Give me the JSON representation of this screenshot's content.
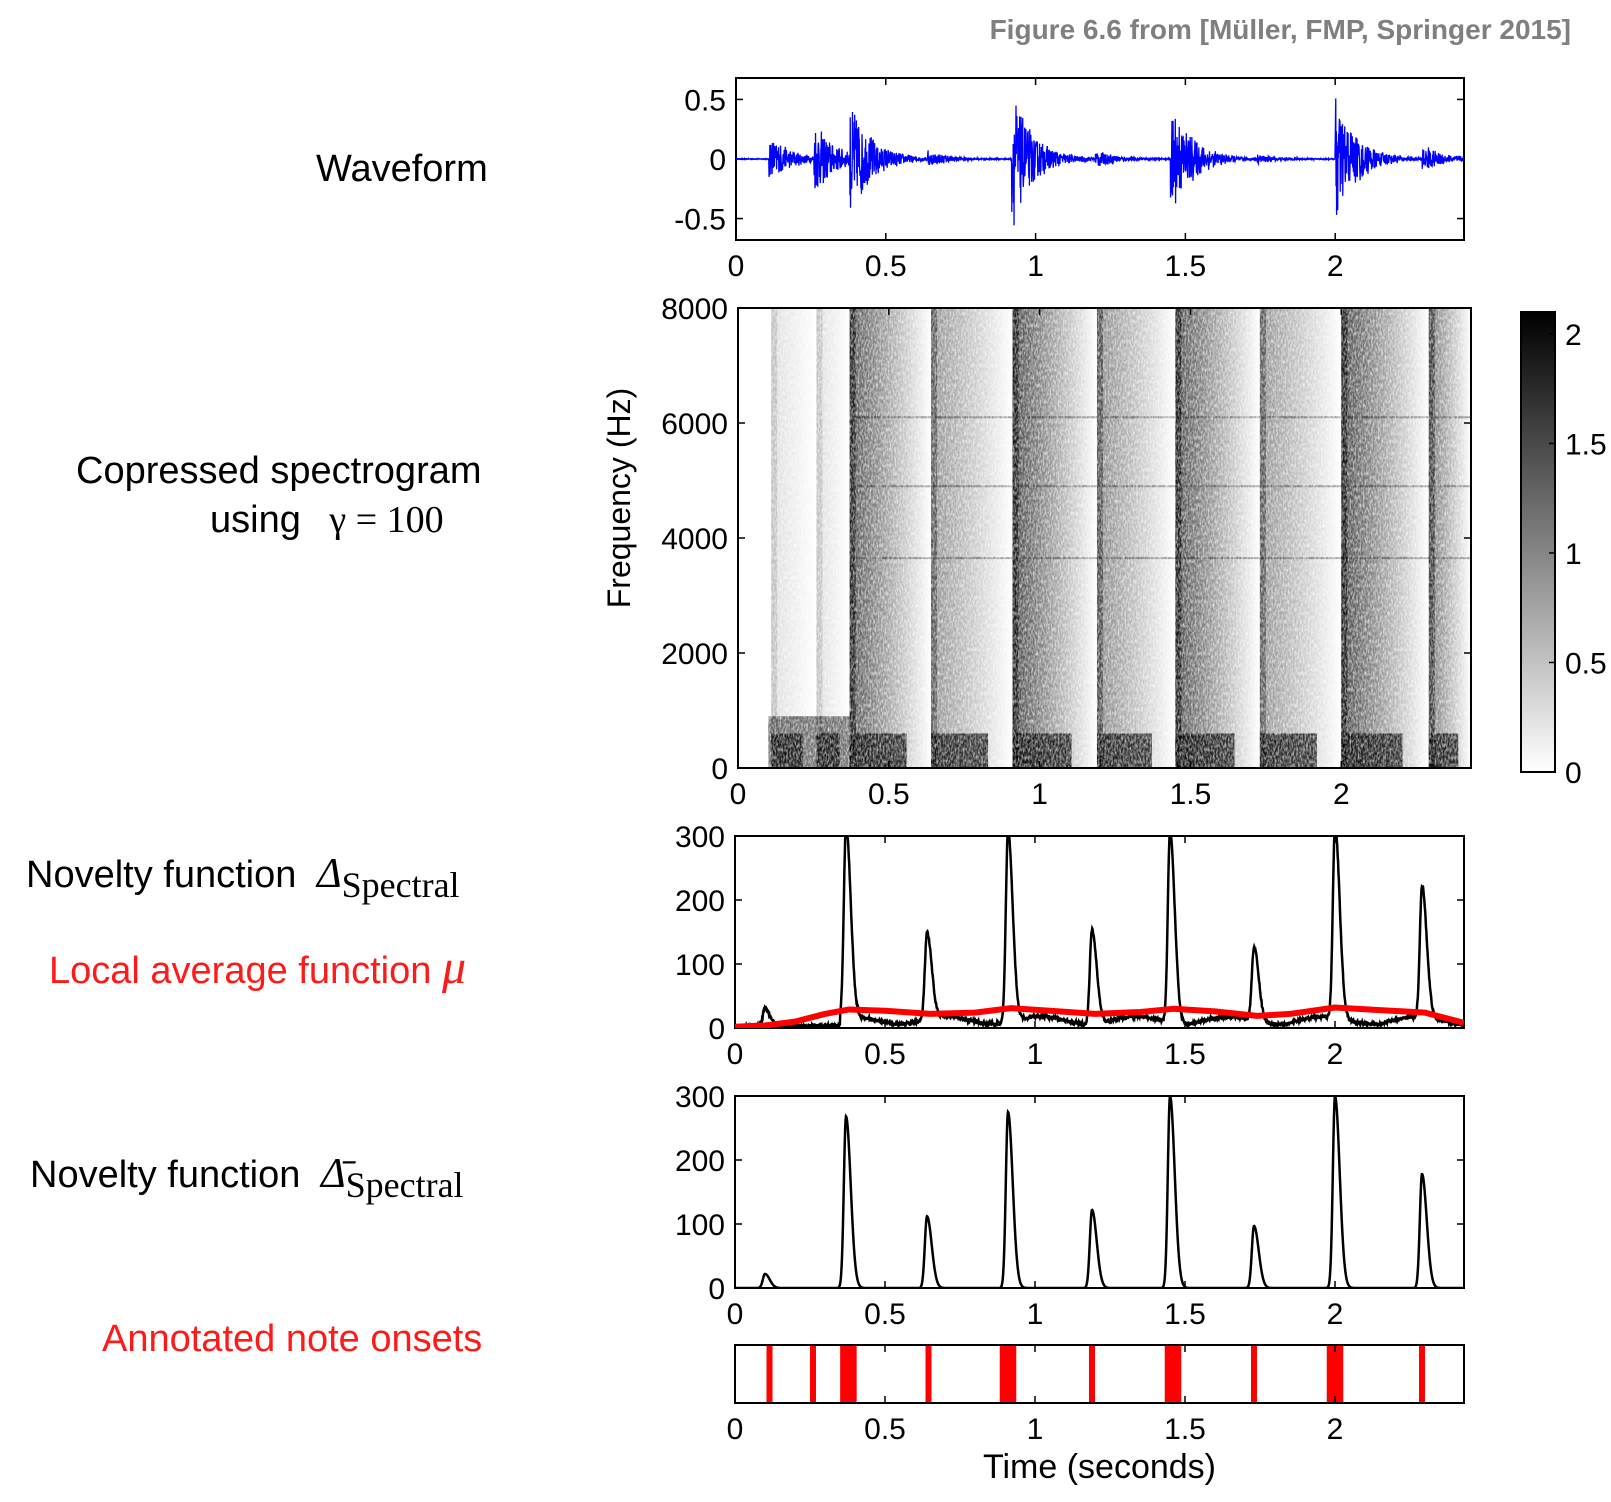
{
  "credit": "Figure 6.6 from [Müller, FMP, Springer 2015]",
  "labels": {
    "waveform": "Waveform",
    "spectrogram_line1": "Copressed spectrogram",
    "spectrogram_line2_prefix": "using",
    "spectrogram_gamma": "γ = 100",
    "novelty_prefix": "Novelty function",
    "novelty_symbol": "Δ",
    "novelty_sub": "Spectral",
    "local_avg_prefix": "Local average function",
    "local_avg_symbol": "μ",
    "novelty2_prefix": "Novelty function",
    "novelty2_symbol": "Δ̄",
    "novelty2_sub": "Spectral",
    "onsets": "Annotated note onsets"
  },
  "colors": {
    "waveform": "#0000ff",
    "novelty": "#000000",
    "local_average": "#ff0000",
    "onsets": "#ff0000",
    "credit": "#7f7f7f"
  },
  "chart_data": [
    {
      "type": "line",
      "id": "waveform",
      "xlim": [
        0,
        2.43
      ],
      "ylim": [
        -0.68,
        0.68
      ],
      "xticks": [
        "0",
        "0.5",
        "1",
        "1.5",
        "2"
      ],
      "yticks": [
        "0.5",
        "0",
        "-0.5"
      ],
      "ytick_values": [
        0.5,
        0,
        -0.5
      ],
      "xtick_values": [
        0,
        0.5,
        1,
        1.5,
        2
      ],
      "bursts": [
        {
          "t": 0.11,
          "amp": 0.22
        },
        {
          "t": 0.26,
          "amp": 0.32
        },
        {
          "t": 0.38,
          "amp": 0.5
        },
        {
          "t": 0.64,
          "amp": 0.06
        },
        {
          "t": 0.92,
          "amp": 0.62
        },
        {
          "t": 1.2,
          "amp": 0.07
        },
        {
          "t": 1.45,
          "amp": 0.55
        },
        {
          "t": 1.74,
          "amp": 0.03
        },
        {
          "t": 2.0,
          "amp": 0.6
        },
        {
          "t": 2.29,
          "amp": 0.12
        }
      ]
    },
    {
      "type": "heatmap",
      "id": "spectrogram",
      "ylabel": "Frequency (Hz)",
      "xlim": [
        0,
        2.43
      ],
      "ylim": [
        0,
        8000
      ],
      "xticks": [
        "0",
        "0.5",
        "1",
        "1.5",
        "2"
      ],
      "xtick_values": [
        0,
        0.5,
        1,
        1.5,
        2
      ],
      "yticks": [
        "8000",
        "6000",
        "4000",
        "2000",
        "0"
      ],
      "ytick_values": [
        8000,
        6000,
        4000,
        2000,
        0
      ],
      "colorbar": {
        "ticks": [
          "2",
          "1.5",
          "1",
          "0.5",
          "0"
        ],
        "tick_values": [
          2,
          1.5,
          1,
          0.5,
          0
        ],
        "range": [
          0,
          2.1
        ]
      },
      "onset_bands": [
        {
          "t": 0.11,
          "strength": 0.35
        },
        {
          "t": 0.26,
          "strength": 0.35
        },
        {
          "t": 0.37,
          "strength": 1.7
        },
        {
          "t": 0.64,
          "strength": 1.1
        },
        {
          "t": 0.91,
          "strength": 1.8
        },
        {
          "t": 1.19,
          "strength": 1.2
        },
        {
          "t": 1.45,
          "strength": 1.75
        },
        {
          "t": 1.73,
          "strength": 1.1
        },
        {
          "t": 2.0,
          "strength": 1.8
        },
        {
          "t": 2.29,
          "strength": 1.4
        }
      ]
    },
    {
      "type": "line",
      "id": "novelty",
      "xlim": [
        0,
        2.43
      ],
      "ylim": [
        0,
        300
      ],
      "xticks": [
        "0",
        "0.5",
        "1",
        "1.5",
        "2"
      ],
      "xtick_values": [
        0,
        0.5,
        1,
        1.5,
        2
      ],
      "yticks": [
        "300",
        "200",
        "100",
        "0"
      ],
      "ytick_values": [
        300,
        200,
        100,
        0
      ],
      "series": [
        {
          "peaks": [
            {
              "t": 0.1,
              "v": 28
            },
            {
              "t": 0.37,
              "v": 300
            },
            {
              "t": 0.64,
              "v": 135
            },
            {
              "t": 0.91,
              "v": 300
            },
            {
              "t": 1.19,
              "v": 147
            },
            {
              "t": 1.45,
              "v": 300
            },
            {
              "t": 1.73,
              "v": 115
            },
            {
              "t": 2.0,
              "v": 300
            },
            {
              "t": 2.29,
              "v": 205
            }
          ]
        },
        {
          "x": [
            0,
            0.1,
            0.2,
            0.3,
            0.38,
            0.5,
            0.65,
            0.8,
            0.92,
            1.05,
            1.2,
            1.35,
            1.46,
            1.6,
            1.74,
            1.85,
            2.0,
            2.15,
            2.3,
            2.43
          ],
          "y": [
            2,
            4,
            10,
            22,
            29,
            27,
            22,
            24,
            31,
            27,
            22,
            25,
            30,
            26,
            19,
            22,
            32,
            28,
            24,
            8
          ]
        }
      ]
    },
    {
      "type": "line",
      "id": "novelty_normalized",
      "xlim": [
        0,
        2.43
      ],
      "ylim": [
        0,
        300
      ],
      "xticks": [
        "0",
        "0.5",
        "1",
        "1.5",
        "2"
      ],
      "xtick_values": [
        0,
        0.5,
        1,
        1.5,
        2
      ],
      "yticks": [
        "300",
        "200",
        "100",
        "0"
      ],
      "ytick_values": [
        300,
        200,
        100,
        0
      ],
      "peaks": [
        {
          "t": 0.1,
          "v": 22
        },
        {
          "t": 0.37,
          "v": 268
        },
        {
          "t": 0.64,
          "v": 112
        },
        {
          "t": 0.91,
          "v": 275
        },
        {
          "t": 1.19,
          "v": 122
        },
        {
          "t": 1.45,
          "v": 300
        },
        {
          "t": 1.73,
          "v": 97
        },
        {
          "t": 2.0,
          "v": 300
        },
        {
          "t": 2.29,
          "v": 178
        }
      ]
    },
    {
      "type": "bar",
      "id": "onsets",
      "xlabel": "Time (seconds)",
      "xlim": [
        0,
        2.43
      ],
      "xticks": [
        "0",
        "0.5",
        "1",
        "1.5",
        "2"
      ],
      "xtick_values": [
        0,
        0.5,
        1,
        1.5,
        2
      ],
      "onsets": [
        {
          "t": 0.115,
          "w": 0.02
        },
        {
          "t": 0.26,
          "w": 0.02
        },
        {
          "t": 0.378,
          "w": 0.055
        },
        {
          "t": 0.645,
          "w": 0.02
        },
        {
          "t": 0.91,
          "w": 0.055
        },
        {
          "t": 1.19,
          "w": 0.02
        },
        {
          "t": 1.46,
          "w": 0.055
        },
        {
          "t": 1.73,
          "w": 0.02
        },
        {
          "t": 2.0,
          "w": 0.055
        },
        {
          "t": 2.29,
          "w": 0.02
        }
      ]
    }
  ]
}
